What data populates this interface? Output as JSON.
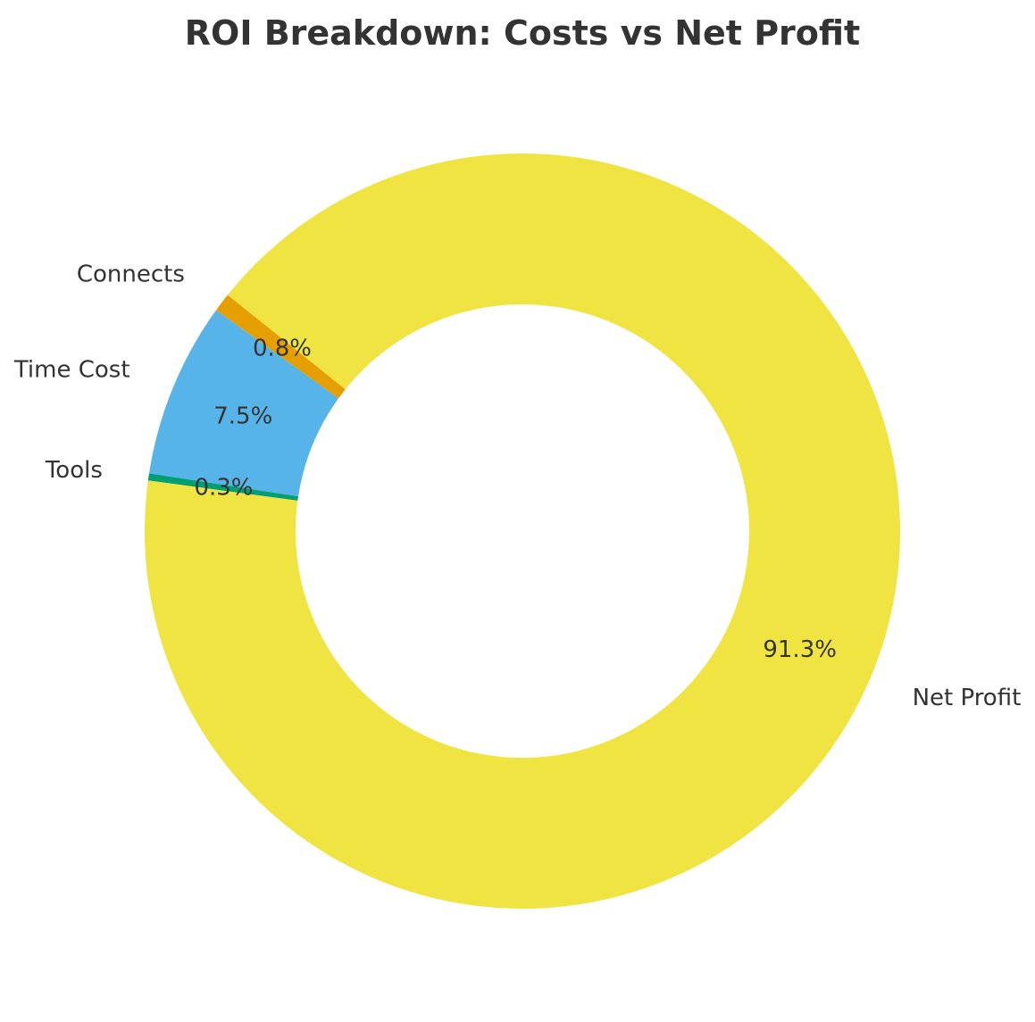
{
  "chart_data": {
    "type": "pie",
    "style": "donut",
    "title": "ROI Breakdown: Costs vs Net Profit",
    "start_angle_deg": 141.3,
    "direction": "counterclockwise",
    "slices": [
      {
        "label": "Connects",
        "value": 0.8,
        "pct_label": "0.8%",
        "color": "#E69F00"
      },
      {
        "label": "Time Cost",
        "value": 7.5,
        "pct_label": "7.5%",
        "color": "#56B4E9"
      },
      {
        "label": "Tools",
        "value": 0.3,
        "pct_label": "0.3%",
        "color": "#009E73"
      },
      {
        "label": "Net Profit",
        "value": 91.3,
        "pct_label": "91.3%",
        "color": "#F0E442"
      }
    ]
  }
}
